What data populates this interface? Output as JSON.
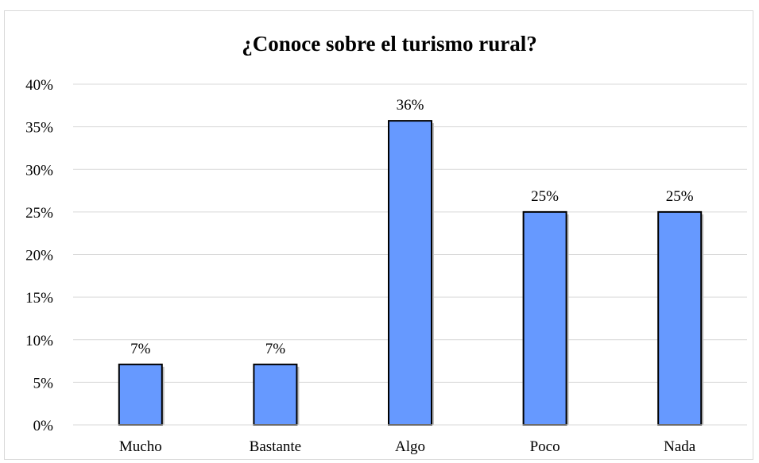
{
  "chart_data": {
    "type": "bar",
    "title": "¿Conoce sobre el turismo rural?",
    "xlabel": "",
    "ylabel": "",
    "categories": [
      "Mucho",
      "Bastante",
      "Algo",
      "Poco",
      "Nada"
    ],
    "values": [
      7.1,
      7.1,
      35.7,
      25,
      25
    ],
    "data_labels": [
      "7%",
      "7%",
      "36%",
      "25%",
      "25%"
    ],
    "ylim": [
      0,
      40
    ],
    "y_ticks": [
      0,
      5,
      10,
      15,
      20,
      25,
      30,
      35,
      40
    ],
    "y_tick_labels": [
      "0%",
      "5%",
      "10%",
      "15%",
      "20%",
      "25%",
      "30%",
      "35%",
      "40%"
    ],
    "grid": true,
    "legend": "none",
    "colors": {
      "bar_fill": "#6699FF",
      "bar_edge": "#000000",
      "gridline": "#d9d9d9"
    }
  }
}
